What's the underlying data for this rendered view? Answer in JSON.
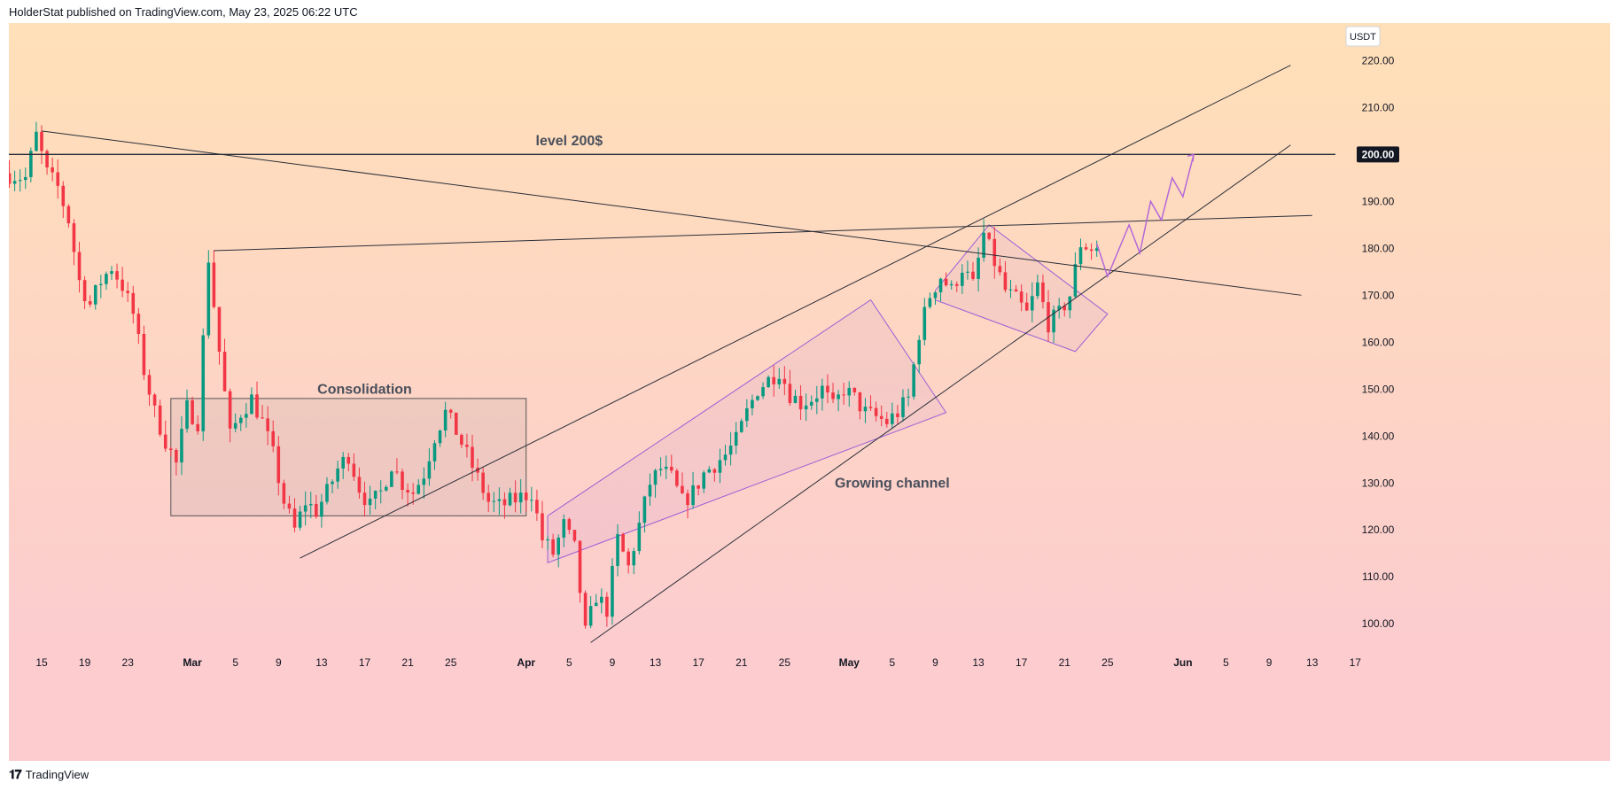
{
  "header": {
    "published_text": "HolderStat published on TradingView.com, May 23, 2025 06:22 UTC"
  },
  "footer": {
    "logo_icon": "tradingview-logo-icon",
    "brand": "TradingView"
  },
  "colors": {
    "background_top": "#ffe0b8",
    "background_bottom": "#fccccf",
    "candle_up": "#089981",
    "candle_down": "#f23645",
    "trendline": "#2a2e39",
    "channel": "#9c5fd6",
    "projection": "#b468d8",
    "box_stroke": "#555555"
  },
  "chart_data": {
    "type": "candlestick",
    "symbol_currency": "USDT",
    "ylim": [
      94,
      228
    ],
    "y_ticks": [
      "100.00",
      "110.00",
      "120.00",
      "130.00",
      "140.00",
      "150.00",
      "160.00",
      "170.00",
      "180.00",
      "190.00",
      "200.00",
      "210.00",
      "220.00"
    ],
    "current_level_label": "200.00",
    "x_ticks": [
      {
        "label": "15",
        "date": "2025-02-15"
      },
      {
        "label": "19",
        "date": "2025-02-19"
      },
      {
        "label": "23",
        "date": "2025-02-23"
      },
      {
        "label": "Mar",
        "date": "2025-03-01"
      },
      {
        "label": "5",
        "date": "2025-03-05"
      },
      {
        "label": "9",
        "date": "2025-03-09"
      },
      {
        "label": "13",
        "date": "2025-03-13"
      },
      {
        "label": "17",
        "date": "2025-03-17"
      },
      {
        "label": "21",
        "date": "2025-03-21"
      },
      {
        "label": "25",
        "date": "2025-03-25"
      },
      {
        "label": "Apr",
        "date": "2025-04-01"
      },
      {
        "label": "5",
        "date": "2025-04-05"
      },
      {
        "label": "9",
        "date": "2025-04-09"
      },
      {
        "label": "13",
        "date": "2025-04-13"
      },
      {
        "label": "17",
        "date": "2025-04-17"
      },
      {
        "label": "21",
        "date": "2025-04-21"
      },
      {
        "label": "25",
        "date": "2025-04-25"
      },
      {
        "label": "May",
        "date": "2025-05-01"
      },
      {
        "label": "5",
        "date": "2025-05-05"
      },
      {
        "label": "9",
        "date": "2025-05-09"
      },
      {
        "label": "13",
        "date": "2025-05-13"
      },
      {
        "label": "17",
        "date": "2025-05-17"
      },
      {
        "label": "21",
        "date": "2025-05-21"
      },
      {
        "label": "25",
        "date": "2025-05-25"
      },
      {
        "label": "Jun",
        "date": "2025-06-01"
      },
      {
        "label": "5",
        "date": "2025-06-05"
      },
      {
        "label": "9",
        "date": "2025-06-09"
      },
      {
        "label": "13",
        "date": "2025-06-13"
      },
      {
        "label": "17",
        "date": "2025-06-17"
      }
    ],
    "price_path": [
      [
        "2025-02-12",
        196
      ],
      [
        "2025-02-14",
        195
      ],
      [
        "2025-02-15",
        204
      ],
      [
        "2025-02-16",
        196
      ],
      [
        "2025-02-17",
        193
      ],
      [
        "2025-02-18",
        186
      ],
      [
        "2025-02-19",
        173
      ],
      [
        "2025-02-20",
        168
      ],
      [
        "2025-02-21",
        173
      ],
      [
        "2025-02-22",
        176
      ],
      [
        "2025-02-23",
        172
      ],
      [
        "2025-02-24",
        166
      ],
      [
        "2025-02-25",
        154
      ],
      [
        "2025-02-26",
        145
      ],
      [
        "2025-02-27",
        139
      ],
      [
        "2025-02-28",
        134
      ],
      [
        "2025-03-01",
        146
      ],
      [
        "2025-03-02",
        143
      ],
      [
        "2025-03-03",
        178
      ],
      [
        "2025-03-04",
        158
      ],
      [
        "2025-03-05",
        140
      ],
      [
        "2025-03-06",
        145
      ],
      [
        "2025-03-07",
        148
      ],
      [
        "2025-03-08",
        143
      ],
      [
        "2025-03-09",
        136
      ],
      [
        "2025-03-10",
        126
      ],
      [
        "2025-03-11",
        120
      ],
      [
        "2025-03-12",
        126
      ],
      [
        "2025-03-13",
        124
      ],
      [
        "2025-03-14",
        128
      ],
      [
        "2025-03-15",
        133
      ],
      [
        "2025-03-16",
        136
      ],
      [
        "2025-03-17",
        129
      ],
      [
        "2025-03-18",
        125
      ],
      [
        "2025-03-19",
        128
      ],
      [
        "2025-03-20",
        134
      ],
      [
        "2025-03-21",
        130
      ],
      [
        "2025-03-22",
        128
      ],
      [
        "2025-03-23",
        132
      ],
      [
        "2025-03-24",
        140
      ],
      [
        "2025-03-25",
        145
      ],
      [
        "2025-03-26",
        141
      ],
      [
        "2025-03-27",
        136
      ],
      [
        "2025-03-28",
        131
      ],
      [
        "2025-03-29",
        126
      ],
      [
        "2025-03-30",
        125
      ],
      [
        "2025-03-31",
        126
      ],
      [
        "2025-04-01",
        127
      ],
      [
        "2025-04-02",
        128
      ],
      [
        "2025-04-03",
        118
      ],
      [
        "2025-04-04",
        115
      ],
      [
        "2025-04-05",
        121
      ],
      [
        "2025-04-06",
        116
      ],
      [
        "2025-04-07",
        98
      ],
      [
        "2025-04-08",
        106
      ],
      [
        "2025-04-09",
        103
      ],
      [
        "2025-04-10",
        118
      ],
      [
        "2025-04-11",
        112
      ],
      [
        "2025-04-12",
        121
      ],
      [
        "2025-04-13",
        130
      ],
      [
        "2025-04-14",
        133
      ],
      [
        "2025-04-15",
        131
      ],
      [
        "2025-04-16",
        126
      ],
      [
        "2025-04-17",
        128
      ],
      [
        "2025-04-18",
        132
      ],
      [
        "2025-04-19",
        134
      ],
      [
        "2025-04-20",
        136
      ],
      [
        "2025-04-21",
        139
      ],
      [
        "2025-04-22",
        145
      ],
      [
        "2025-04-23",
        150
      ],
      [
        "2025-04-24",
        152
      ],
      [
        "2025-04-25",
        154
      ],
      [
        "2025-04-26",
        149
      ],
      [
        "2025-04-27",
        147
      ],
      [
        "2025-04-28",
        148
      ],
      [
        "2025-04-29",
        150
      ],
      [
        "2025-04-30",
        146
      ],
      [
        "2025-05-01",
        150
      ],
      [
        "2025-05-02",
        148
      ],
      [
        "2025-05-03",
        145
      ],
      [
        "2025-05-04",
        144
      ],
      [
        "2025-05-05",
        143
      ],
      [
        "2025-05-06",
        145
      ],
      [
        "2025-05-07",
        148
      ],
      [
        "2025-05-08",
        162
      ],
      [
        "2025-05-09",
        170
      ],
      [
        "2025-05-10",
        174
      ],
      [
        "2025-05-11",
        171
      ],
      [
        "2025-05-12",
        176
      ],
      [
        "2025-05-13",
        172
      ],
      [
        "2025-05-14",
        183
      ],
      [
        "2025-05-15",
        177
      ],
      [
        "2025-05-16",
        171
      ],
      [
        "2025-05-17",
        169
      ],
      [
        "2025-05-18",
        166
      ],
      [
        "2025-05-19",
        172
      ],
      [
        "2025-05-20",
        164
      ],
      [
        "2025-05-21",
        166
      ],
      [
        "2025-05-22",
        170
      ],
      [
        "2025-05-23",
        181
      ],
      [
        "2025-05-24",
        180
      ]
    ],
    "annotations": [
      {
        "text": "level 200$",
        "date": "2025-04-05",
        "price": 202
      },
      {
        "text": "Consolidation",
        "date": "2025-03-17",
        "price": 149
      },
      {
        "text": "Growing channel",
        "date": "2025-05-05",
        "price": 129
      }
    ],
    "horizontal_lines": [
      {
        "price": 200
      }
    ],
    "trendlines": [
      {
        "from": [
          "2025-02-15",
          205
        ],
        "to": [
          "2025-06-12",
          170
        ]
      },
      {
        "from": [
          "2025-03-03",
          179.5
        ],
        "to": [
          "2025-06-13",
          187
        ]
      },
      {
        "from": [
          "2025-03-11",
          114
        ],
        "to": [
          "2025-06-11",
          219
        ]
      },
      {
        "from": [
          "2025-04-07",
          96
        ],
        "to": [
          "2025-06-11",
          202
        ]
      }
    ],
    "rectangles": [
      {
        "from": [
          "2025-02-27",
          148
        ],
        "to": [
          "2025-04-01",
          123
        ]
      }
    ],
    "channel_polygons": [
      [
        [
          "2025-04-03",
          123
        ],
        [
          "2025-05-03",
          169
        ],
        [
          "2025-05-10",
          145
        ],
        [
          "2025-04-03",
          113
        ]
      ],
      [
        [
          "2025-05-09",
          171
        ],
        [
          "2025-05-14",
          185
        ],
        [
          "2025-05-25",
          166
        ],
        [
          "2025-05-22",
          158
        ],
        [
          "2025-05-09",
          169
        ]
      ]
    ],
    "projection_path": [
      [
        "2025-05-24",
        181
      ],
      [
        "2025-05-25",
        174
      ],
      [
        "2025-05-27",
        185
      ],
      [
        "2025-05-28",
        179
      ],
      [
        "2025-05-29",
        190
      ],
      [
        "2025-05-30",
        186
      ],
      [
        "2025-05-31",
        195
      ],
      [
        "2025-06-01",
        191
      ],
      [
        "2025-06-02",
        200
      ]
    ]
  }
}
